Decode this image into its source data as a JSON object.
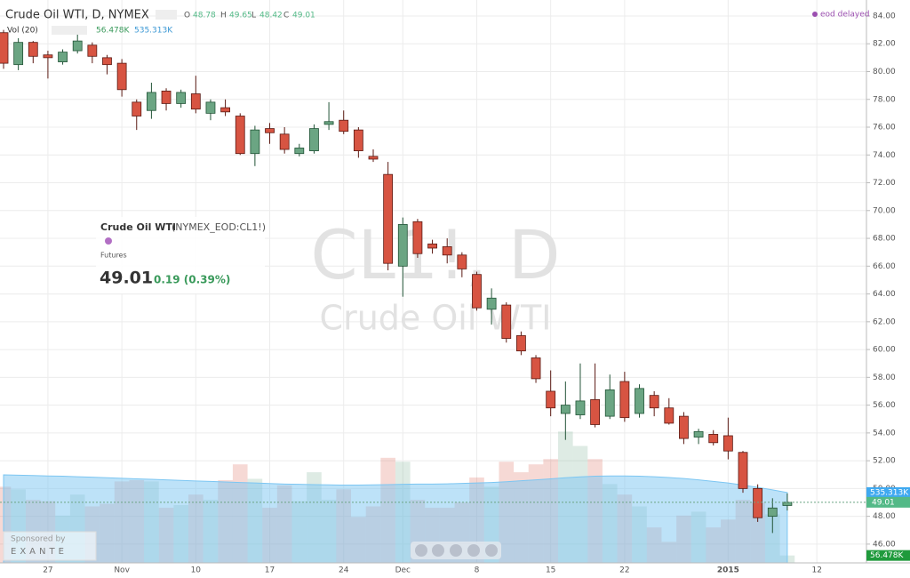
{
  "chart_data": {
    "type": "candlestick",
    "title": "Crude Oil WTI, D, NYMEX",
    "ohlc_labels": [
      "O",
      "H",
      "L",
      "C"
    ],
    "volume_title": "Vol (20)",
    "volume_label": "56.478K",
    "volume_ma_label": "535.313K",
    "status": "eod delayed",
    "info": {
      "name": "Crude Oil WTI",
      "symbol": "(NYMEX_EOD:CL1!)",
      "kind": "Futures",
      "change": "0.19 (0.39%)"
    },
    "watermark": [
      "CL1!, D",
      "Crude Oil WTI"
    ],
    "sponsor": {
      "label": "Sponsored by",
      "name": "EXANTE"
    },
    "categories": [
      null,
      null,
      null,
      "27",
      null,
      null,
      null,
      null,
      "Nov",
      null,
      null,
      null,
      null,
      "10",
      null,
      null,
      null,
      null,
      "17",
      null,
      null,
      null,
      null,
      "24",
      null,
      null,
      null,
      "Dec",
      null,
      null,
      null,
      null,
      "8",
      null,
      null,
      null,
      null,
      "15",
      null,
      null,
      null,
      null,
      "22",
      null,
      null,
      null,
      null,
      null,
      null,
      "2015",
      null,
      null,
      null,
      null,
      null,
      "12"
    ],
    "open": [
      82.8,
      80.5,
      82.1,
      81.2,
      80.7,
      81.5,
      81.9,
      81.0,
      80.6,
      77.8,
      77.2,
      78.6,
      77.7,
      78.4,
      77.0,
      77.4,
      76.8,
      74.1,
      75.9,
      75.5,
      74.1,
      74.3,
      76.2,
      76.5,
      75.8,
      73.9,
      72.6,
      66.0,
      69.2,
      67.6,
      67.4,
      66.8,
      65.4,
      62.9,
      63.2,
      61.0,
      59.4,
      57.0,
      55.4,
      55.3,
      56.4,
      55.2,
      57.7,
      55.4,
      56.7,
      55.8,
      55.2,
      53.7,
      53.9,
      53.8,
      52.6,
      50.0,
      48.0,
      48.78,
      null,
      null
    ],
    "high": [
      83.0,
      82.4,
      82.2,
      81.5,
      81.6,
      82.7,
      82.1,
      81.2,
      80.9,
      78.0,
      79.2,
      78.8,
      78.7,
      79.7,
      78.0,
      78.0,
      77.0,
      76.1,
      76.3,
      76.0,
      74.8,
      76.2,
      77.8,
      77.2,
      76.0,
      74.4,
      73.5,
      69.5,
      69.4,
      67.9,
      68.0,
      67.0,
      65.6,
      64.4,
      63.4,
      61.3,
      59.6,
      58.5,
      57.7,
      59.0,
      59.0,
      58.2,
      58.4,
      57.5,
      57.0,
      56.5,
      55.5,
      54.3,
      54.2,
      55.1,
      52.7,
      50.3,
      49.3,
      49.65,
      null,
      null
    ],
    "low": [
      80.2,
      80.1,
      80.6,
      79.5,
      80.5,
      81.3,
      80.6,
      79.8,
      78.2,
      75.8,
      76.6,
      77.2,
      77.4,
      77.0,
      76.5,
      76.8,
      74.0,
      73.2,
      74.8,
      74.1,
      73.9,
      74.1,
      75.8,
      75.5,
      73.8,
      73.5,
      65.7,
      63.8,
      66.6,
      66.9,
      66.2,
      65.2,
      62.8,
      61.8,
      60.5,
      59.6,
      57.6,
      55.2,
      53.5,
      55.0,
      54.4,
      55.0,
      54.8,
      55.1,
      55.2,
      54.6,
      53.2,
      53.2,
      53.1,
      52.1,
      49.7,
      47.6,
      46.8,
      48.42,
      null,
      null
    ],
    "close": [
      80.6,
      82.1,
      81.1,
      81.0,
      81.4,
      82.2,
      81.1,
      80.5,
      78.7,
      76.8,
      78.5,
      77.7,
      78.5,
      77.3,
      77.8,
      77.1,
      74.1,
      75.8,
      75.6,
      74.4,
      74.5,
      75.9,
      76.4,
      75.7,
      74.3,
      73.7,
      66.2,
      69.0,
      66.9,
      67.3,
      66.8,
      65.8,
      63.0,
      63.7,
      60.8,
      59.9,
      57.9,
      55.8,
      56.0,
      56.3,
      54.6,
      57.1,
      55.1,
      57.2,
      55.8,
      54.7,
      53.6,
      54.1,
      53.3,
      52.7,
      50.0,
      47.9,
      48.6,
      49.01,
      null,
      null
    ],
    "volume": [
      580,
      560,
      480,
      470,
      360,
      520,
      430,
      450,
      620,
      630,
      620,
      420,
      440,
      520,
      480,
      630,
      750,
      640,
      420,
      590,
      470,
      690,
      480,
      560,
      350,
      430,
      800,
      770,
      480,
      420,
      420,
      460,
      650,
      580,
      770,
      690,
      750,
      790,
      1000,
      890,
      790,
      600,
      520,
      430,
      270,
      160,
      360,
      390,
      270,
      330,
      480,
      460,
      370,
      56.478,
      null,
      null
    ],
    "volume_ma": [
      670,
      668,
      665,
      662,
      660,
      656,
      652,
      648,
      644,
      640,
      636,
      632,
      628,
      624,
      620,
      616,
      612,
      608,
      604,
      600,
      598,
      596,
      594,
      592,
      592,
      594,
      596,
      598,
      600,
      600,
      602,
      605,
      608,
      612,
      618,
      625,
      632,
      640,
      648,
      655,
      660,
      662,
      662,
      660,
      656,
      650,
      642,
      632,
      620,
      608,
      592,
      575,
      556,
      535.313,
      null,
      null
    ],
    "up_color": "#6ba583",
    "down_color": "#d75442",
    "volume_ma_color": "#7cc6f2",
    "ylim": [
      44.65,
      85.15
    ],
    "vlim": [
      0,
      4285
    ],
    "yticks": [
      {
        "value": 46,
        "label": "46.00"
      },
      {
        "value": 48,
        "label": "48.00"
      },
      {
        "value": 50,
        "label": "50.00"
      },
      {
        "value": 52,
        "label": "52.00"
      },
      {
        "value": 54,
        "label": "54.00"
      },
      {
        "value": 56,
        "label": "56.00"
      },
      {
        "value": 58,
        "label": "58.00"
      },
      {
        "value": 60,
        "label": "60.00"
      },
      {
        "value": 62,
        "label": "62.00"
      },
      {
        "value": 64,
        "label": "64.00"
      },
      {
        "value": 66,
        "label": "66.00"
      },
      {
        "value": 68,
        "label": "68.00"
      },
      {
        "value": 70,
        "label": "70.00"
      },
      {
        "value": 72,
        "label": "72.00"
      },
      {
        "value": 74,
        "label": "74.00"
      },
      {
        "value": 76,
        "label": "76.00"
      },
      {
        "value": 78,
        "label": "78.00"
      },
      {
        "value": 80,
        "label": "80.00"
      },
      {
        "value": 82,
        "label": "82.00"
      },
      {
        "value": 84,
        "label": "84.00"
      }
    ],
    "grid": true
  }
}
